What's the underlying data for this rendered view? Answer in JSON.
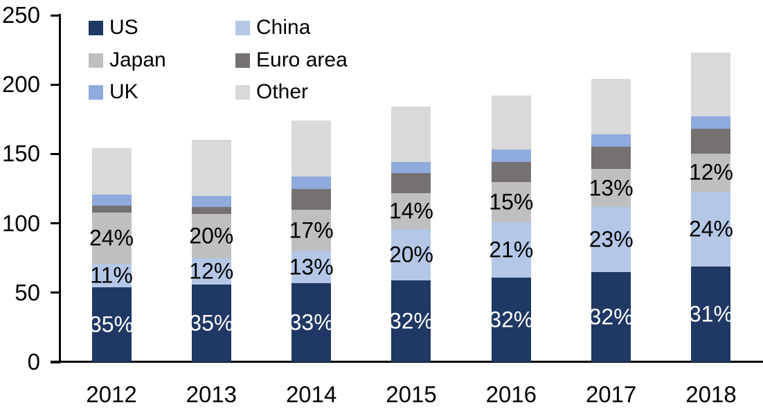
{
  "chart_data": {
    "type": "bar",
    "stacked": true,
    "categories": [
      "2012",
      "2013",
      "2014",
      "2015",
      "2016",
      "2017",
      "2018"
    ],
    "series": [
      {
        "name": "US",
        "color": "#1f3864",
        "values": [
          54,
          56,
          57,
          59,
          61,
          65,
          69
        ],
        "labels": [
          "35%",
          "35%",
          "33%",
          "32%",
          "32%",
          "32%",
          "31%"
        ],
        "label_color": "#ffffff"
      },
      {
        "name": "China",
        "color": "#b4c7e7",
        "values": [
          17,
          19,
          23,
          37,
          40,
          47,
          54
        ],
        "labels": [
          "11%",
          "12%",
          "13%",
          "20%",
          "21%",
          "23%",
          "24%"
        ],
        "label_color": "#000000"
      },
      {
        "name": "Japan",
        "color": "#bfbfbf",
        "values": [
          37,
          32,
          30,
          26,
          29,
          27,
          27
        ],
        "labels": [
          "24%",
          "20%",
          "17%",
          "14%",
          "15%",
          "13%",
          "12%"
        ],
        "label_color": "#000000"
      },
      {
        "name": "Euro area",
        "color": "#767171",
        "values": [
          5,
          5,
          15,
          14,
          14,
          16,
          18
        ],
        "labels": null,
        "label_color": null
      },
      {
        "name": "UK",
        "color": "#8faadc",
        "values": [
          8,
          8,
          9,
          8,
          9,
          9,
          9
        ],
        "labels": null,
        "label_color": null
      },
      {
        "name": "Other",
        "color": "#d9d9d9",
        "values": [
          33,
          40,
          40,
          40,
          39,
          40,
          46
        ],
        "labels": null,
        "label_color": null
      }
    ],
    "totals": [
      154,
      160,
      174,
      184,
      192,
      204,
      223
    ],
    "y_axis": {
      "min": 0,
      "max": 250,
      "tick_interval": 50,
      "ticks": [
        0,
        50,
        100,
        150,
        200,
        250
      ]
    },
    "legend": {
      "position": "top-left",
      "columns": 2,
      "entries": [
        "US",
        "China",
        "Japan",
        "Euro area",
        "UK",
        "Other"
      ]
    },
    "grid": false,
    "axis_color": "#000000",
    "background_color": "#ffffff"
  }
}
